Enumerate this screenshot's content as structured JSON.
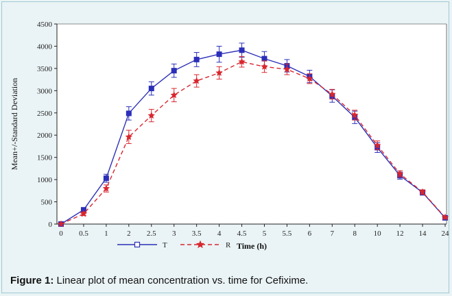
{
  "caption": {
    "label": "Figure 1:",
    "text": " Linear plot of mean concentration vs. time for Cefixime."
  },
  "chart_data": {
    "type": "line",
    "xlabel": "Time  (h)",
    "ylabel": "Mean+/-Standard Deviation",
    "x_ticks": [
      "0",
      "0.5",
      "1",
      "2",
      "2.5",
      "3",
      "3.5",
      "4",
      "4.5",
      "5",
      "5.5",
      "6",
      "7",
      "8",
      "10",
      "12",
      "14",
      "24"
    ],
    "ylim": [
      0,
      4500
    ],
    "y_ticks": [
      0,
      500,
      1000,
      1500,
      2000,
      2500,
      3000,
      3500,
      4000,
      4500
    ],
    "legend_position": "bottom-left",
    "series": [
      {
        "name": "T",
        "color": "#2b2fb8",
        "line_style": "solid",
        "marker": "square",
        "values": [
          0,
          320,
          1030,
          2490,
          3050,
          3450,
          3700,
          3820,
          3910,
          3720,
          3560,
          3320,
          2880,
          2400,
          1720,
          1090,
          710,
          140
        ],
        "errors": [
          0,
          50,
          90,
          150,
          150,
          150,
          160,
          180,
          160,
          160,
          140,
          140,
          140,
          140,
          110,
          80,
          60,
          30
        ]
      },
      {
        "name": "R",
        "color": "#d8262e",
        "line_style": "dashed",
        "marker": "star",
        "values": [
          0,
          230,
          800,
          1960,
          2440,
          2900,
          3220,
          3400,
          3650,
          3540,
          3480,
          3270,
          2920,
          2450,
          1770,
          1130,
          720,
          150
        ],
        "errors": [
          0,
          40,
          80,
          150,
          140,
          150,
          140,
          140,
          120,
          130,
          120,
          110,
          110,
          110,
          100,
          70,
          50,
          20
        ]
      }
    ]
  }
}
